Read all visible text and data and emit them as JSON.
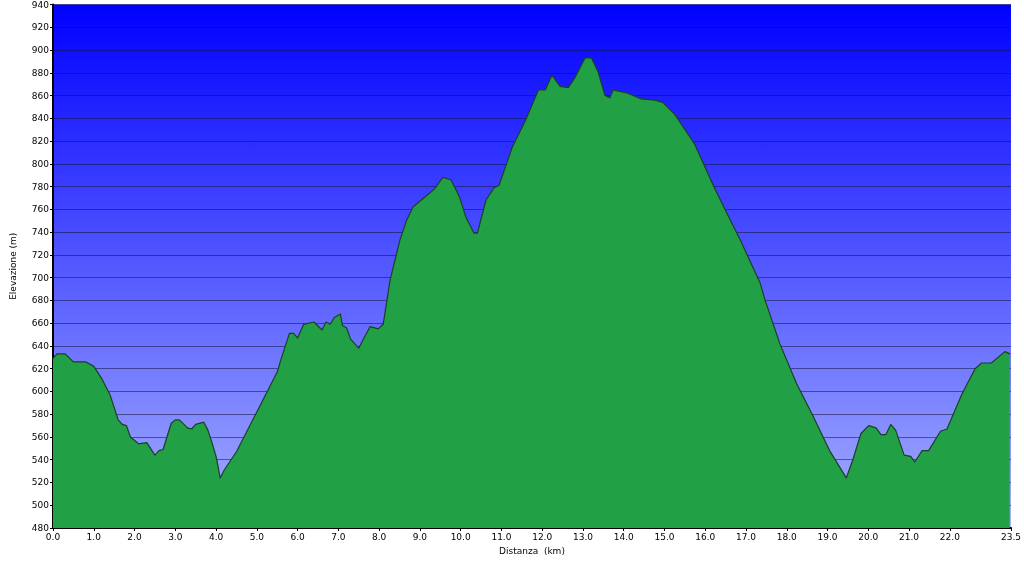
{
  "chart_data": {
    "type": "area",
    "xlabel": "Distanza  (km)",
    "ylabel": "Elevazione (m)",
    "xlim": [
      0,
      23.5
    ],
    "ylim": [
      480,
      940
    ],
    "xticks": [
      {
        "value": 0,
        "label": "0.0"
      },
      {
        "value": 1,
        "label": "1.0"
      },
      {
        "value": 2,
        "label": "2.0"
      },
      {
        "value": 3,
        "label": "3.0"
      },
      {
        "value": 4,
        "label": "4.0"
      },
      {
        "value": 5,
        "label": "5.0"
      },
      {
        "value": 6,
        "label": "6.0"
      },
      {
        "value": 7,
        "label": "7.0"
      },
      {
        "value": 8,
        "label": "8.0"
      },
      {
        "value": 9,
        "label": "9.0"
      },
      {
        "value": 10,
        "label": "10.0"
      },
      {
        "value": 11,
        "label": "11.0"
      },
      {
        "value": 12,
        "label": "12.0"
      },
      {
        "value": 13,
        "label": "13.0"
      },
      {
        "value": 14,
        "label": "14.0"
      },
      {
        "value": 15,
        "label": "15.0"
      },
      {
        "value": 16,
        "label": "16.0"
      },
      {
        "value": 17,
        "label": "17.0"
      },
      {
        "value": 18,
        "label": "18.0"
      },
      {
        "value": 19,
        "label": "19.0"
      },
      {
        "value": 20,
        "label": "20.0"
      },
      {
        "value": 21,
        "label": "21.0"
      },
      {
        "value": 22,
        "label": "22.0"
      },
      {
        "value": 23.5,
        "label": "23.5"
      }
    ],
    "yticks": [
      480,
      500,
      520,
      540,
      560,
      580,
      600,
      620,
      640,
      660,
      680,
      700,
      720,
      740,
      760,
      780,
      800,
      820,
      840,
      860,
      880,
      900,
      920,
      940
    ],
    "grid": "y",
    "marker": "none",
    "line_style": "solid",
    "series": [
      {
        "color": "#22a045",
        "x": [
          0,
          0.1,
          0.3,
          0.5,
          0.8,
          1.0,
          1.2,
          1.4,
          1.6,
          1.7,
          1.8,
          1.9,
          2.1,
          2.3,
          2.5,
          2.6,
          2.7,
          2.9,
          3.0,
          3.1,
          3.3,
          3.4,
          3.5,
          3.7,
          3.8,
          3.9,
          4.0,
          4.05,
          4.1,
          4.2,
          4.5,
          5.0,
          5.5,
          5.6,
          5.8,
          5.9,
          6.0,
          6.15,
          6.4,
          6.6,
          6.7,
          6.8,
          6.9,
          7.05,
          7.1,
          7.2,
          7.3,
          7.5,
          7.6,
          7.78,
          7.98,
          8.1,
          8.27,
          8.51,
          8.67,
          8.83,
          9.16,
          9.36,
          9.56,
          9.76,
          9.97,
          10.13,
          10.33,
          10.41,
          10.62,
          10.82,
          10.94,
          11.27,
          11.59,
          11.91,
          12.08,
          12.24,
          12.44,
          12.64,
          12.81,
          13.05,
          13.21,
          13.37,
          13.54,
          13.66,
          13.74,
          14.1,
          14.43,
          14.75,
          14.96,
          15.24,
          15.73,
          16.21,
          16.54,
          16.86,
          17.35,
          17.47,
          17.83,
          18.24,
          18.65,
          19.05,
          19.46,
          19.62,
          19.82,
          20.01,
          20.19,
          20.31,
          20.43,
          20.55,
          20.67,
          20.88,
          21.04,
          21.14,
          21.32,
          21.48,
          21.77,
          21.93,
          22.3,
          22.62,
          22.78,
          23.02,
          23.35,
          23.47
        ],
        "values": [
          629,
          633,
          633,
          626,
          626,
          622,
          611,
          597,
          575,
          571,
          570,
          560,
          554,
          555,
          544,
          548,
          549,
          572,
          575,
          575,
          568,
          567,
          571,
          573,
          566,
          555,
          543,
          534,
          524,
          531,
          547,
          582,
          617,
          629,
          651,
          651,
          647,
          659,
          661,
          654,
          661,
          659,
          665,
          668,
          658,
          656,
          646,
          638,
          645,
          657,
          655,
          659,
          698,
          733,
          750,
          762,
          772,
          778,
          788,
          786,
          771,
          753,
          739,
          739,
          768,
          779,
          781,
          815,
          838,
          865,
          865,
          878,
          868,
          867,
          876,
          893,
          893,
          881,
          860,
          858,
          865,
          862,
          857,
          856,
          854,
          844,
          818,
          780,
          756,
          733,
          695,
          680,
          642,
          607,
          578,
          548,
          524,
          540,
          563,
          570,
          568,
          562,
          562,
          571,
          566,
          544,
          543,
          538,
          548,
          548,
          565,
          567,
          598,
          620,
          625,
          625,
          635,
          633
        ]
      }
    ]
  }
}
